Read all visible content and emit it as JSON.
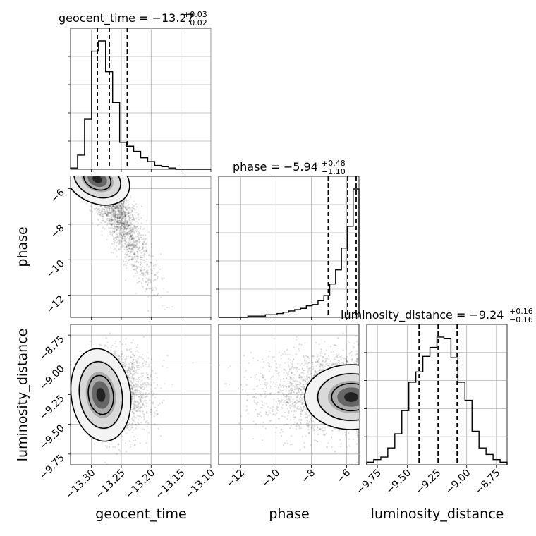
{
  "chart_data": {
    "type": "corner",
    "parameters": [
      "geocent_time",
      "phase",
      "luminosity_distance"
    ],
    "titles": [
      {
        "param": "geocent_time",
        "text": "geocent_time = −13.27",
        "sup": "+0.03",
        "sub": "−0.02",
        "median": -13.27,
        "plus": 0.03,
        "minus": 0.02
      },
      {
        "param": "phase",
        "text": "phase = −5.94",
        "sup": "+0.48",
        "sub": "−1.10",
        "median": -5.94,
        "plus": 0.48,
        "minus": 1.1
      },
      {
        "param": "luminosity_distance",
        "text": "luminosity_distance = −9.24",
        "sup": "+0.16",
        "sub": "−0.16",
        "median": -9.24,
        "plus": 0.16,
        "minus": 0.16
      }
    ],
    "ranges": {
      "geocent_time": [
        -13.335,
        -13.1
      ],
      "phase": [
        -13.25,
        -5.3
      ],
      "luminosity_distance": [
        -9.84,
        -8.66
      ]
    },
    "ticks": {
      "geocent_time": {
        "values": [
          -13.3,
          -13.25,
          -13.2,
          -13.15,
          -13.1
        ],
        "labels": [
          "−13.30",
          "−13.25",
          "−13.20",
          "−13.15",
          "−13.10"
        ]
      },
      "phase_x": {
        "values": [
          -12,
          -10,
          -8,
          -6
        ],
        "labels": [
          "−12",
          "−10",
          "−8",
          "−6"
        ]
      },
      "phase_y": {
        "values": [
          -6,
          -8,
          -10,
          -12
        ],
        "labels": [
          "−6",
          "−8",
          "−10",
          "−12"
        ]
      },
      "luminosity_distance": {
        "values": [
          -9.75,
          -9.5,
          -9.25,
          -9.0,
          -8.75
        ],
        "labels": [
          "−9.75",
          "−9.50",
          "−9.25",
          "−9.00",
          "−8.75"
        ]
      }
    },
    "quantile_lines": {
      "geocent_time": [
        -13.29,
        -13.27,
        -13.24
      ],
      "phase": [
        -7.04,
        -5.94,
        -5.46
      ],
      "luminosity_distance": [
        -9.4,
        -9.24,
        -9.08
      ]
    },
    "histograms": {
      "geocent_time": {
        "bin_edges_range": [
          -13.335,
          -13.1
        ],
        "counts": [
          1,
          11,
          39,
          92,
          100,
          76,
          52,
          21,
          18,
          14,
          9,
          6,
          3,
          2,
          1,
          0,
          0,
          0,
          0,
          0
        ]
      },
      "phase": {
        "bin_edges_range": [
          -13.25,
          -5.3
        ],
        "counts": [
          0,
          0,
          0,
          0,
          0,
          1,
          1,
          1,
          2,
          2,
          3,
          4,
          5,
          6,
          7,
          9,
          10,
          13,
          17,
          26,
          37,
          54,
          71,
          100
        ]
      },
      "luminosity_distance": {
        "bin_edges_range": [
          -9.84,
          -8.66
        ],
        "counts": [
          2,
          4,
          6,
          13,
          24,
          42,
          64,
          72,
          84,
          91,
          99,
          98,
          83,
          64,
          50,
          26,
          13,
          8,
          4,
          2
        ]
      }
    },
    "grid": true
  }
}
